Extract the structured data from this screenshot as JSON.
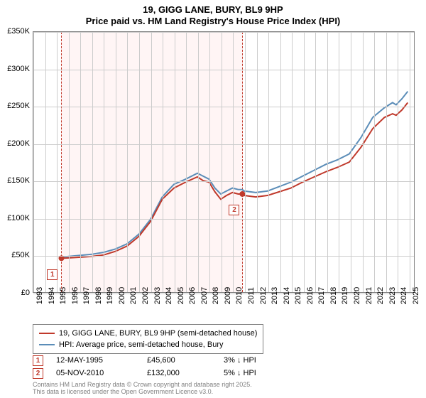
{
  "title": {
    "line1": "19, GIGG LANE, BURY, BL9 9HP",
    "line2": "Price paid vs. HM Land Registry's House Price Index (HPI)",
    "fontsize": 13,
    "fontweight": "bold",
    "color": "#000000"
  },
  "chart": {
    "type": "line",
    "background_color": "#ffffff",
    "border_color": "#808080",
    "grid_color": "#cccccc",
    "x": {
      "years": [
        1993,
        1994,
        1995,
        1996,
        1997,
        1998,
        1999,
        2000,
        2001,
        2002,
        2003,
        2004,
        2005,
        2006,
        2007,
        2008,
        2009,
        2010,
        2011,
        2012,
        2013,
        2014,
        2015,
        2016,
        2017,
        2018,
        2019,
        2020,
        2021,
        2022,
        2023,
        2024,
        2025
      ],
      "min": 1993,
      "max": 2025.5,
      "label_fontsize": 11,
      "label_rotation": -90
    },
    "y": {
      "ticks": [
        0,
        50000,
        100000,
        150000,
        200000,
        250000,
        300000,
        350000
      ],
      "tick_labels": [
        "£0",
        "£50K",
        "£100K",
        "£150K",
        "£200K",
        "£250K",
        "£300K",
        "£350K"
      ],
      "min": 0,
      "max": 350000,
      "label_fontsize": 11
    },
    "series": [
      {
        "name": "19, GIGG LANE, BURY, BL9 9HP (semi-detached house)",
        "color": "#c0392b",
        "line_width": 2,
        "points": [
          [
            1995.4,
            45600
          ],
          [
            1996,
            46000
          ],
          [
            1997,
            47000
          ],
          [
            1998,
            48000
          ],
          [
            1999,
            50000
          ],
          [
            2000,
            55000
          ],
          [
            2001,
            62000
          ],
          [
            2002,
            75000
          ],
          [
            2003,
            95000
          ],
          [
            2004,
            125000
          ],
          [
            2005,
            140000
          ],
          [
            2006,
            148000
          ],
          [
            2007,
            155000
          ],
          [
            2007.5,
            150000
          ],
          [
            2008,
            148000
          ],
          [
            2008.5,
            135000
          ],
          [
            2009,
            125000
          ],
          [
            2009.5,
            130000
          ],
          [
            2010,
            134000
          ],
          [
            2010.5,
            132000
          ],
          [
            2010.85,
            132000
          ],
          [
            2011,
            130000
          ],
          [
            2012,
            128000
          ],
          [
            2013,
            130000
          ],
          [
            2014,
            135000
          ],
          [
            2015,
            140000
          ],
          [
            2016,
            148000
          ],
          [
            2017,
            155000
          ],
          [
            2018,
            162000
          ],
          [
            2019,
            168000
          ],
          [
            2020,
            175000
          ],
          [
            2021,
            195000
          ],
          [
            2022,
            220000
          ],
          [
            2023,
            235000
          ],
          [
            2023.7,
            240000
          ],
          [
            2024,
            238000
          ],
          [
            2024.5,
            245000
          ],
          [
            2025,
            255000
          ]
        ]
      },
      {
        "name": "HPI: Average price, semi-detached house, Bury",
        "color": "#5b8db8",
        "line_width": 2,
        "points": [
          [
            1995.4,
            47000
          ],
          [
            1996,
            48000
          ],
          [
            1997,
            49500
          ],
          [
            1998,
            51000
          ],
          [
            1999,
            53500
          ],
          [
            2000,
            58000
          ],
          [
            2001,
            65000
          ],
          [
            2002,
            78000
          ],
          [
            2003,
            98000
          ],
          [
            2004,
            128000
          ],
          [
            2005,
            145000
          ],
          [
            2006,
            152000
          ],
          [
            2007,
            160000
          ],
          [
            2007.5,
            156000
          ],
          [
            2008,
            152000
          ],
          [
            2008.5,
            140000
          ],
          [
            2009,
            132000
          ],
          [
            2009.5,
            136000
          ],
          [
            2010,
            140000
          ],
          [
            2010.5,
            138000
          ],
          [
            2010.85,
            138000
          ],
          [
            2011,
            136000
          ],
          [
            2012,
            134000
          ],
          [
            2013,
            136000
          ],
          [
            2014,
            142000
          ],
          [
            2015,
            148000
          ],
          [
            2016,
            156000
          ],
          [
            2017,
            164000
          ],
          [
            2018,
            172000
          ],
          [
            2019,
            178000
          ],
          [
            2020,
            186000
          ],
          [
            2021,
            208000
          ],
          [
            2022,
            235000
          ],
          [
            2023,
            248000
          ],
          [
            2023.7,
            255000
          ],
          [
            2024,
            252000
          ],
          [
            2024.5,
            260000
          ],
          [
            2025,
            270000
          ]
        ]
      }
    ],
    "sale_markers": [
      {
        "n": "1",
        "year": 1995.37,
        "price": 45600,
        "color": "#c0392b"
      },
      {
        "n": "2",
        "year": 2010.85,
        "price": 132000,
        "color": "#c0392b"
      }
    ],
    "shade_region": {
      "from_year": 1995.37,
      "to_year": 2010.85,
      "fill": "rgba(255,0,0,0.04)",
      "dash_color": "#c0392b"
    }
  },
  "legend": {
    "items": [
      {
        "label": "19, GIGG LANE, BURY, BL9 9HP (semi-detached house)",
        "color": "#c0392b"
      },
      {
        "label": "HPI: Average price, semi-detached house, Bury",
        "color": "#5b8db8"
      }
    ],
    "fontsize": 11,
    "border_color": "#808080"
  },
  "marker_table": {
    "rows": [
      {
        "n": "1",
        "date": "12-MAY-1995",
        "price": "£45,600",
        "hpi": "3% ↓ HPI",
        "color": "#c0392b"
      },
      {
        "n": "2",
        "date": "05-NOV-2010",
        "price": "£132,000",
        "hpi": "5% ↓ HPI",
        "color": "#c0392b"
      }
    ],
    "fontsize": 11
  },
  "footnote": {
    "line1": "Contains HM Land Registry data © Crown copyright and database right 2025.",
    "line2": "This data is licensed under the Open Government Licence v3.0.",
    "fontsize": 9,
    "color": "#808080"
  }
}
